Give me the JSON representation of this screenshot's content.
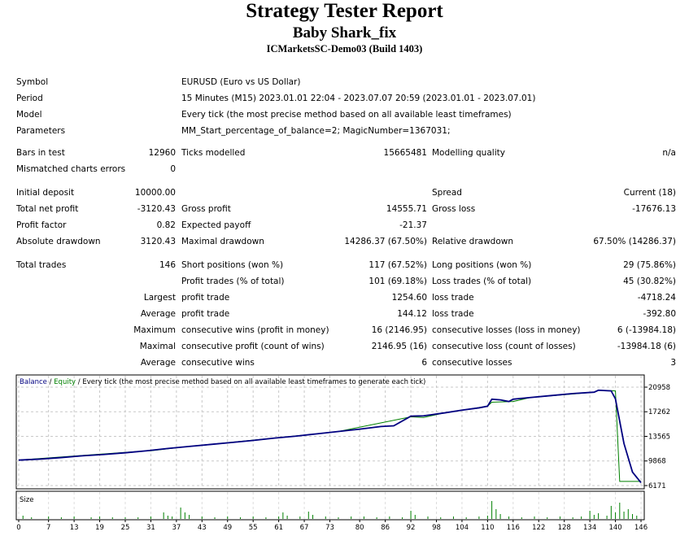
{
  "report": {
    "title": "Strategy Tester Report",
    "expert": "Baby Shark_fix",
    "server": "ICMarketsSC-Demo03 (Build 1403)"
  },
  "info": {
    "symbol_label": "Symbol",
    "symbol": "EURUSD (Euro vs US Dollar)",
    "period_label": "Period",
    "period": "15 Minutes (M15) 2023.01.01 22:04 - 2023.07.07 20:59 (2023.01.01 - 2023.07.01)",
    "model_label": "Model",
    "model": "Every tick (the most precise method based on all available least timeframes)",
    "parameters_label": "Parameters",
    "parameters": "MM_Start_percentage_of_balance=2; MagicNumber=1367031;"
  },
  "stats": {
    "bars_label": "Bars in test",
    "bars": "12960",
    "ticks_label": "Ticks modelled",
    "ticks": "15665481",
    "quality_label": "Modelling quality",
    "quality": "n/a",
    "mismatch_label": "Mismatched charts errors",
    "mismatch": "0",
    "deposit_label": "Initial deposit",
    "deposit": "10000.00",
    "spread_label": "Spread",
    "spread": "Current (18)",
    "netprofit_label": "Total net profit",
    "netprofit": "-3120.43",
    "grossprofit_label": "Gross profit",
    "grossprofit": "14555.71",
    "grossloss_label": "Gross loss",
    "grossloss": "-17676.13",
    "pf_label": "Profit factor",
    "pf": "0.82",
    "payoff_label": "Expected payoff",
    "payoff": "-21.37",
    "absdd_label": "Absolute drawdown",
    "absdd": "3120.43",
    "maxdd_label": "Maximal drawdown",
    "maxdd": "14286.37 (67.50%)",
    "reldd_label": "Relative drawdown",
    "reldd": "67.50% (14286.37)",
    "trades_label": "Total trades",
    "trades": "146",
    "short_label": "Short positions (won %)",
    "short": "117 (67.52%)",
    "long_label": "Long positions (won %)",
    "long": "29 (75.86%)",
    "profittrades_label": "Profit trades (% of total)",
    "profittrades": "101 (69.18%)",
    "losstrades_label": "Loss trades (% of total)",
    "losstrades": "45 (30.82%)",
    "largest_label": "Largest",
    "largest_profit_label": "profit trade",
    "largest_profit": "1254.60",
    "largest_loss_label": "loss trade",
    "largest_loss": "-4718.24",
    "average_label": "Average",
    "average_profit_label": "profit trade",
    "average_profit": "144.12",
    "average_loss_label": "loss trade",
    "average_loss": "-392.80",
    "maximum_label": "Maximum",
    "max_wins_label": "consecutive wins (profit in money)",
    "max_wins": "16 (2146.95)",
    "max_losses_label": "consecutive losses (loss in money)",
    "max_losses": "6 (-13984.18)",
    "maximal_label": "Maximal",
    "maximal_profit_label": "consecutive profit (count of wins)",
    "maximal_profit": "2146.95 (16)",
    "maximal_loss_label": "consecutive loss (count of losses)",
    "maximal_loss": "-13984.18 (6)",
    "avg_label": "Average",
    "avg_wins_label": "consecutive wins",
    "avg_wins": "6",
    "avg_losses_label": "consecutive losses",
    "avg_losses": "3"
  },
  "chart_data": {
    "type": "line",
    "legend_balance": "Balance",
    "legend_sep1": " / ",
    "legend_equity": "Equity",
    "legend_rest": " / Every tick (the most precise method based on all available least timeframes to generate each tick)",
    "size_label": "Size",
    "y_ticks": [
      20958,
      17262,
      13565,
      9868,
      6171
    ],
    "x_ticks": [
      0,
      7,
      13,
      19,
      25,
      31,
      37,
      43,
      49,
      55,
      61,
      67,
      73,
      80,
      86,
      92,
      98,
      104,
      110,
      116,
      122,
      128,
      134,
      140,
      146
    ],
    "ylim": [
      6171,
      20958
    ],
    "xlim": [
      0,
      146
    ],
    "balance_color": "#000080",
    "equity_color": "#008000",
    "series": [
      {
        "name": "Balance",
        "x": [
          0,
          5,
          10,
          15,
          20,
          25,
          30,
          35,
          40,
          45,
          50,
          55,
          60,
          65,
          70,
          75,
          80,
          85,
          88,
          92,
          95,
          100,
          104,
          108,
          110,
          111,
          113,
          115,
          116,
          120,
          125,
          130,
          135,
          136,
          139,
          140,
          142,
          144,
          146
        ],
        "values": [
          10000,
          10150,
          10380,
          10650,
          10850,
          11100,
          11400,
          11750,
          12050,
          12350,
          12650,
          12950,
          13300,
          13600,
          13950,
          14300,
          14650,
          15050,
          15150,
          16600,
          16650,
          17100,
          17500,
          17850,
          18100,
          19150,
          19050,
          18800,
          19150,
          19400,
          19700,
          20000,
          20200,
          20500,
          20400,
          19200,
          12500,
          8200,
          6600
        ]
      },
      {
        "name": "Equity",
        "x": [
          0,
          30,
          31,
          35,
          40,
          70,
          75,
          92,
          95,
          100,
          110,
          111,
          116,
          120,
          135,
          136,
          140,
          141,
          146
        ],
        "values": [
          10000,
          11400,
          11400,
          11700,
          12050,
          13950,
          14300,
          16500,
          16400,
          17100,
          18100,
          18700,
          18800,
          19400,
          20200,
          20500,
          20400,
          6800,
          6800
        ]
      }
    ],
    "size_bars": [
      {
        "x": 1,
        "h": 4
      },
      {
        "x": 3,
        "h": 2
      },
      {
        "x": 7,
        "h": 3
      },
      {
        "x": 10,
        "h": 2
      },
      {
        "x": 13,
        "h": 3
      },
      {
        "x": 17,
        "h": 2
      },
      {
        "x": 19,
        "h": 3
      },
      {
        "x": 22,
        "h": 2
      },
      {
        "x": 25,
        "h": 2
      },
      {
        "x": 28,
        "h": 2
      },
      {
        "x": 31,
        "h": 3
      },
      {
        "x": 34,
        "h": 8
      },
      {
        "x": 35,
        "h": 4
      },
      {
        "x": 36,
        "h": 3
      },
      {
        "x": 38,
        "h": 14
      },
      {
        "x": 39,
        "h": 8
      },
      {
        "x": 40,
        "h": 5
      },
      {
        "x": 43,
        "h": 3
      },
      {
        "x": 46,
        "h": 2
      },
      {
        "x": 49,
        "h": 3
      },
      {
        "x": 52,
        "h": 2
      },
      {
        "x": 55,
        "h": 3
      },
      {
        "x": 58,
        "h": 2
      },
      {
        "x": 61,
        "h": 3
      },
      {
        "x": 62,
        "h": 8
      },
      {
        "x": 63,
        "h": 4
      },
      {
        "x": 66,
        "h": 3
      },
      {
        "x": 68,
        "h": 9
      },
      {
        "x": 69,
        "h": 5
      },
      {
        "x": 72,
        "h": 3
      },
      {
        "x": 75,
        "h": 2
      },
      {
        "x": 78,
        "h": 3
      },
      {
        "x": 81,
        "h": 3
      },
      {
        "x": 84,
        "h": 2
      },
      {
        "x": 87,
        "h": 3
      },
      {
        "x": 90,
        "h": 2
      },
      {
        "x": 92,
        "h": 10
      },
      {
        "x": 93,
        "h": 5
      },
      {
        "x": 96,
        "h": 3
      },
      {
        "x": 99,
        "h": 2
      },
      {
        "x": 102,
        "h": 3
      },
      {
        "x": 105,
        "h": 2
      },
      {
        "x": 108,
        "h": 3
      },
      {
        "x": 110,
        "h": 4
      },
      {
        "x": 111,
        "h": 22
      },
      {
        "x": 112,
        "h": 12
      },
      {
        "x": 113,
        "h": 6
      },
      {
        "x": 115,
        "h": 3
      },
      {
        "x": 118,
        "h": 2
      },
      {
        "x": 121,
        "h": 3
      },
      {
        "x": 124,
        "h": 2
      },
      {
        "x": 127,
        "h": 3
      },
      {
        "x": 130,
        "h": 2
      },
      {
        "x": 132,
        "h": 3
      },
      {
        "x": 134,
        "h": 10
      },
      {
        "x": 135,
        "h": 5
      },
      {
        "x": 136,
        "h": 7
      },
      {
        "x": 138,
        "h": 4
      },
      {
        "x": 139,
        "h": 16
      },
      {
        "x": 140,
        "h": 8
      },
      {
        "x": 141,
        "h": 20
      },
      {
        "x": 142,
        "h": 9
      },
      {
        "x": 143,
        "h": 12
      },
      {
        "x": 144,
        "h": 6
      },
      {
        "x": 145,
        "h": 4
      }
    ]
  }
}
